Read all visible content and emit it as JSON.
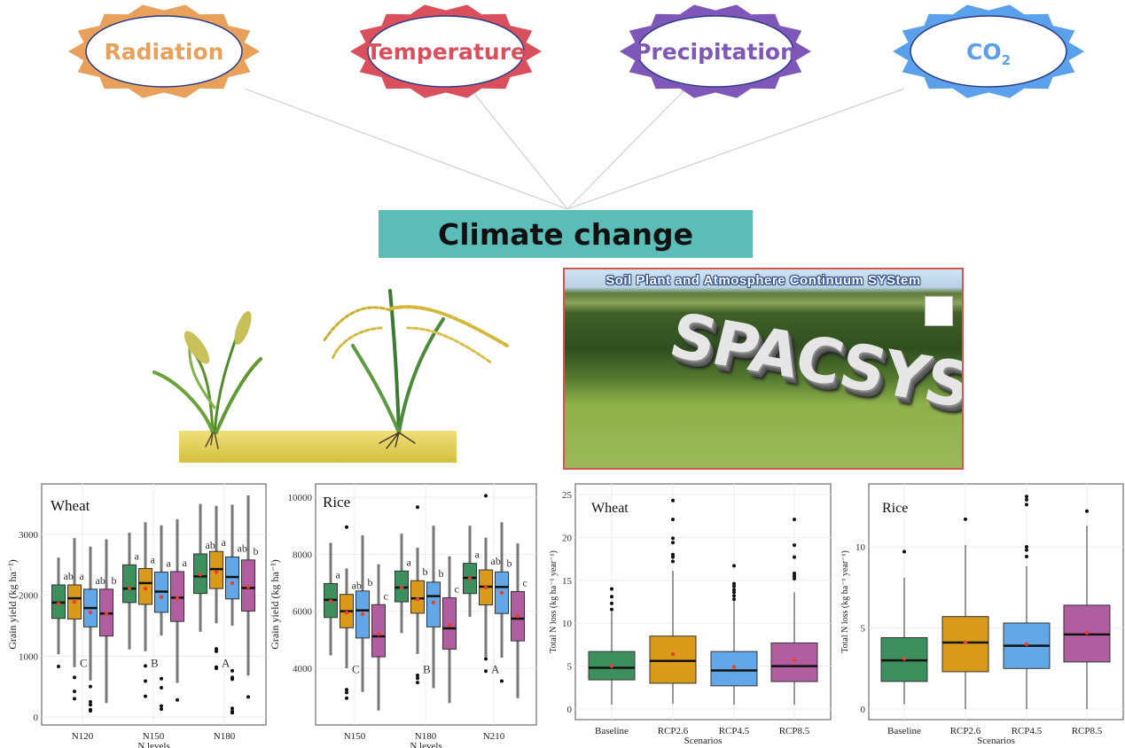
{
  "climate_factors": [
    {
      "label": "Radiation",
      "color": "#e8a05a"
    },
    {
      "label": "Temperature",
      "color": "#d94f5c"
    },
    {
      "label": "Precipitation",
      "color": "#7e57b8"
    },
    {
      "label": "CO",
      "subscript": "2",
      "color": "#5aa0ea"
    }
  ],
  "center": {
    "label": "Climate change",
    "color": "#5bbcb8"
  },
  "crops_illustration": {
    "icons": [
      "wheat-plant-icon",
      "rice-plant-icon"
    ],
    "soil_color": "#e2cf55"
  },
  "model": {
    "title": "Soil Plant and Atmosphere Continuum SYStem",
    "name": "SPACSYS",
    "border_color": "#d9534f"
  },
  "series_colors": [
    "#3e8f5e",
    "#d99a1a",
    "#62a8e8",
    "#b05ea0"
  ],
  "mean_color": "#e8402a",
  "chart_data": [
    {
      "type": "boxplot",
      "title": "Wheat",
      "xlabel": "N levels",
      "ylabel": "Grain yield (kg ha⁻¹)",
      "ylim": [
        -50,
        3700
      ],
      "yticks": [
        0,
        1000,
        2000,
        3000
      ],
      "grid": true,
      "groups": [
        {
          "label": "N120",
          "letter": "C",
          "boxes": [
            {
              "stats": [
                1030,
                1620,
                1880,
                2170,
                2620
              ],
              "mean": 1860,
              "outliers": [
                830
              ],
              "letter": "ab"
            },
            {
              "stats": [
                820,
                1610,
                1950,
                2170,
                2940
              ],
              "mean": 1890,
              "outliers": [
                650,
                420,
                300
              ],
              "letter": "a"
            },
            {
              "stats": [
                600,
                1480,
                1790,
                2100,
                2800
              ],
              "mean": 1720,
              "outliers": [
                500,
                250,
                200,
                120,
                100
              ],
              "letter": "ab"
            },
            {
              "stats": [
                230,
                1330,
                1700,
                2100,
                2920
              ],
              "mean": 1700,
              "outliers": [],
              "letter": "b"
            }
          ]
        },
        {
          "label": "N150",
          "letter": "B",
          "boxes": [
            {
              "stats": [
                1110,
                1880,
                2110,
                2500,
                3030
              ],
              "mean": 2120,
              "outliers": [],
              "letter": "a"
            },
            {
              "stats": [
                1080,
                1850,
                2200,
                2440,
                3200
              ],
              "mean": 2110,
              "outliers": [
                840,
                590,
                340
              ],
              "letter": "a"
            },
            {
              "stats": [
                1340,
                1720,
                2060,
                2380,
                3150
              ],
              "mean": 1970,
              "outliers": [
                630,
                480,
                180,
                130
              ],
              "letter": "a"
            },
            {
              "stats": [
                560,
                1570,
                1960,
                2390,
                3250
              ],
              "mean": 1950,
              "outliers": [
                280
              ],
              "letter": "a"
            }
          ]
        },
        {
          "label": "N180",
          "letter": "A",
          "boxes": [
            {
              "stats": [
                1400,
                2030,
                2310,
                2680,
                3500
              ],
              "mean": 2340,
              "outliers": [],
              "letter": "ab"
            },
            {
              "stats": [
                1540,
                2110,
                2430,
                2720,
                3470
              ],
              "mean": 2380,
              "outliers": [
                1120,
                1080,
                820,
                800
              ],
              "letter": "a"
            },
            {
              "stats": [
                1500,
                1940,
                2300,
                2630,
                3490
              ],
              "mean": 2200,
              "outliers": [
                760,
                650,
                620,
                140,
                90,
                70
              ],
              "letter": "ab"
            },
            {
              "stats": [
                680,
                1740,
                2120,
                2580,
                3640
              ],
              "mean": 2140,
              "outliers": [
                330
              ],
              "letter": "b"
            }
          ]
        }
      ]
    },
    {
      "type": "boxplot",
      "title": "Rice",
      "xlabel": "N levels",
      "ylabel": "Grain yield (kg ha⁻¹)",
      "ylim": [
        2400,
        10300
      ],
      "yticks": [
        4000,
        6000,
        8000,
        10000
      ],
      "grid": true,
      "groups": [
        {
          "label": "N150",
          "letter": "C",
          "boxes": [
            {
              "stats": [
                4450,
                5780,
                6400,
                6970,
                8400
              ],
              "mean": 6350,
              "outliers": [],
              "letter": "a"
            },
            {
              "stats": [
                4000,
                5420,
                6000,
                6590,
                7500
              ],
              "mean": 5950,
              "outliers": [
                8950,
                3250,
                3150,
                2950
              ],
              "letter": "ab"
            },
            {
              "stats": [
                3170,
                5060,
                6030,
                6710,
                8660
              ],
              "mean": 5900,
              "outliers": [],
              "letter": "b"
            },
            {
              "stats": [
                2520,
                4400,
                5120,
                6230,
                7650
              ],
              "mean": 5200,
              "outliers": [],
              "letter": "c"
            }
          ]
        },
        {
          "label": "N180",
          "letter": "B",
          "boxes": [
            {
              "stats": [
                5230,
                6330,
                6830,
                7410,
                8720
              ],
              "mean": 6830,
              "outliers": [],
              "letter": "a"
            },
            {
              "stats": [
                4500,
                5930,
                6450,
                7070,
                8230
              ],
              "mean": 6420,
              "outliers": [
                9650,
                3750,
                3650,
                3500
              ],
              "letter": "b"
            },
            {
              "stats": [
                3300,
                5450,
                6530,
                7020,
                9000
              ],
              "mean": 6310,
              "outliers": [],
              "letter": "b"
            },
            {
              "stats": [
                2780,
                4670,
                5400,
                6470,
                7930
              ],
              "mean": 5520,
              "outliers": [],
              "letter": "c"
            }
          ]
        },
        {
          "label": "N210",
          "letter": "A",
          "boxes": [
            {
              "stats": [
                5800,
                6620,
                7170,
                7680,
                9000
              ],
              "mean": 7150,
              "outliers": [],
              "letter": "a"
            },
            {
              "stats": [
                4400,
                6220,
                6860,
                7450,
                8580
              ],
              "mean": 6830,
              "outliers": [
                10050,
                4330,
                3900
              ],
              "letter": "ab"
            },
            {
              "stats": [
                4370,
                5920,
                6850,
                7380,
                9120
              ],
              "mean": 6650,
              "outliers": [
                3550
              ],
              "letter": "b"
            },
            {
              "stats": [
                2950,
                4960,
                5740,
                6690,
                8380
              ],
              "mean": 5830,
              "outliers": [],
              "letter": "c"
            }
          ]
        }
      ]
    },
    {
      "type": "boxplot",
      "title": "Wheat",
      "xlabel": "Scenarios",
      "ylabel": "Total N loss (kg ha⁻¹ year⁻¹)",
      "ylim": [
        -0.5,
        25.5
      ],
      "yticks": [
        0,
        5,
        10,
        15,
        20,
        25
      ],
      "grid": true,
      "groups": [
        {
          "label": "Baseline",
          "boxes": [
            {
              "stats": [
                0.5,
                3.4,
                4.8,
                6.7,
                11.3
              ],
              "mean": 5.0,
              "outliers": [
                14,
                13.1,
                12.3,
                11.6
              ]
            }
          ]
        },
        {
          "label": "RCP2.6",
          "boxes": [
            {
              "stats": [
                0.6,
                3.0,
                5.6,
                8.5,
                16.1
              ],
              "mean": 6.4,
              "outliers": [
                24.3,
                22.1,
                19.9,
                19.4,
                18,
                17.7,
                17.2
              ]
            }
          ]
        },
        {
          "label": "RCP4.5",
          "boxes": [
            {
              "stats": [
                0.5,
                2.7,
                4.5,
                6.7,
                12.6
              ],
              "mean": 4.9,
              "outliers": [
                16.7,
                14.6,
                14.3,
                13.9,
                13.6,
                13.2,
                12.8
              ]
            }
          ]
        },
        {
          "label": "RCP8.5",
          "boxes": [
            {
              "stats": [
                0.5,
                3.2,
                5.0,
                7.7,
                13.6
              ],
              "mean": 5.7,
              "outliers": [
                22.1,
                19.1,
                17.7,
                15.8,
                15.5,
                15.2
              ]
            }
          ]
        }
      ]
    },
    {
      "type": "boxplot",
      "title": "Rice",
      "xlabel": "Scenarios",
      "ylabel": "Total N loss (kg ha⁻¹ year⁻¹)",
      "ylim": [
        -0.3,
        13.4
      ],
      "yticks": [
        0,
        5,
        10
      ],
      "grid": true,
      "groups": [
        {
          "label": "Baseline",
          "boxes": [
            {
              "stats": [
                0.3,
                1.7,
                3.0,
                4.4,
                8.1
              ],
              "mean": 3.1,
              "outliers": [
                9.7
              ]
            }
          ]
        },
        {
          "label": "RCP2.6",
          "boxes": [
            {
              "stats": [
                0,
                2.3,
                4.1,
                5.7,
                10.1
              ],
              "mean": 4.1,
              "outliers": [
                11.7
              ]
            }
          ]
        },
        {
          "label": "RCP4.5",
          "boxes": [
            {
              "stats": [
                0,
                2.5,
                3.9,
                5.3,
                8.8
              ],
              "mean": 4.0,
              "outliers": [
                13.1,
                12.9,
                12.6,
                10.0,
                9.8,
                9.4
              ]
            }
          ]
        },
        {
          "label": "RCP8.5",
          "boxes": [
            {
              "stats": [
                0,
                2.9,
                4.6,
                6.4,
                11.3
              ],
              "mean": 4.7,
              "outliers": [
                12.2
              ]
            }
          ]
        }
      ]
    }
  ]
}
